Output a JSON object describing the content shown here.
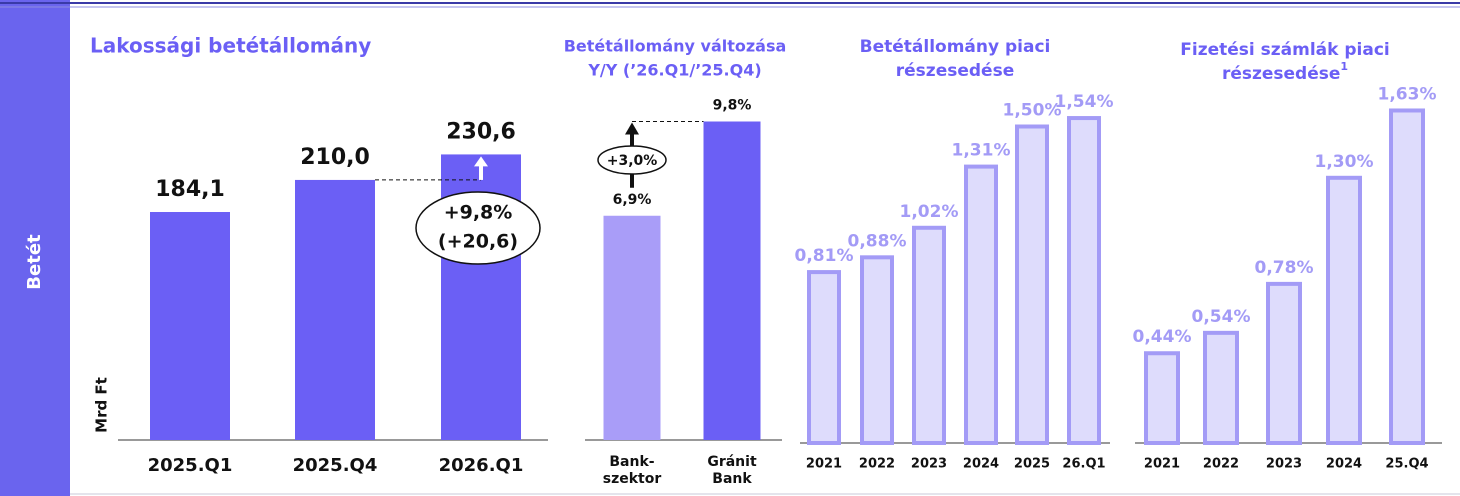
{
  "side_label": "Betét",
  "chart_data": [
    {
      "type": "bar",
      "title": [
        "Lakossági betétállomány"
      ],
      "y_axis_label": "Mrd Ft",
      "categories": [
        "2025.Q1",
        "2025.Q4",
        "2026.Q1"
      ],
      "values": [
        184.1,
        210.0,
        230.6
      ],
      "value_labels": [
        "184,1",
        "210,0",
        "230,6"
      ],
      "color": "#6b5ff5",
      "ylim": [
        0,
        250
      ],
      "annotations": [
        "+9,8%",
        "(+20,6)"
      ]
    },
    {
      "type": "bar",
      "title": [
        "Betétállomány változása",
        "Y/Y (’26.Q1/’25.Q4)"
      ],
      "categories": [
        [
          "Bank-",
          "szektor"
        ],
        [
          "Gránit",
          "Bank"
        ]
      ],
      "values": [
        6.9,
        9.8
      ],
      "value_labels": [
        "6,9%",
        "9,8%"
      ],
      "colors": [
        "#a99df8",
        "#6b5ff5"
      ],
      "ylim": [
        0,
        10
      ],
      "annotations": [
        "+3,0%"
      ]
    },
    {
      "type": "bar",
      "title": [
        "Betétállomány piaci",
        "részesedése"
      ],
      "categories": [
        "2021",
        "2022",
        "2023",
        "2024",
        "2025",
        "26.Q1"
      ],
      "values": [
        0.81,
        0.88,
        1.02,
        1.31,
        1.5,
        1.54
      ],
      "value_labels": [
        "0,81%",
        "0,88%",
        "1,02%",
        "1,31%",
        "1,50%",
        "1,54%"
      ],
      "color": "#dedcfc",
      "edge_color": "#a39bf6",
      "ylim": [
        0,
        1.6
      ]
    },
    {
      "type": "bar",
      "title": [
        "Fizetési számlák piaci",
        "részesedése"
      ],
      "title_superscript": "1",
      "categories": [
        "2021",
        "2022",
        "2023",
        "2024",
        "25.Q4"
      ],
      "values": [
        0.44,
        0.54,
        0.78,
        1.3,
        1.63
      ],
      "value_labels": [
        "0,44%",
        "0,54%",
        "0,78%",
        "1,30%",
        "1,63%"
      ],
      "color": "#dedcfc",
      "edge_color": "#a39bf6",
      "ylim": [
        0,
        1.7
      ]
    }
  ]
}
